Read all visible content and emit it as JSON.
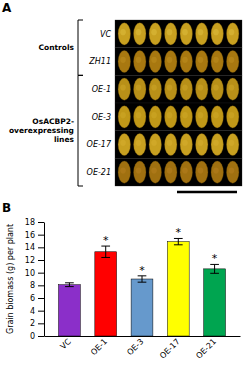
{
  "chart_data": [
    {
      "type": "image",
      "title": "A",
      "categories": [
        "VC",
        "ZH11",
        "OE-1",
        "OE-3",
        "OE-17",
        "OE-21"
      ],
      "colors": [
        "#C8A020",
        "#A87810",
        "#B89018",
        "#C09818",
        "#C8A020",
        "#A07010"
      ],
      "highlight_colors": [
        "#E0C040",
        "#C09020",
        "#D0A828",
        "#D0AA28",
        "#D8B030",
        "#B88020"
      ],
      "background_color": "#000000",
      "grains_per_row": 8,
      "groups": [
        {
          "label": "Controls",
          "members": [
            "VC",
            "ZH11"
          ]
        },
        {
          "label": "OsACBP2-\noverexpressing\nlines",
          "members": [
            "OE-1",
            "OE-3",
            "OE-17",
            "OE-21"
          ]
        }
      ]
    },
    {
      "type": "bar",
      "title": "B",
      "categories": [
        "VC",
        "OE-1",
        "OE-3",
        "OE-17",
        "OE-21"
      ],
      "values": [
        8.1,
        13.3,
        9.0,
        14.9,
        10.6
      ],
      "errors": [
        0.3,
        0.9,
        0.5,
        0.5,
        0.7
      ],
      "colors": [
        "#8B2FC9",
        "#FF0000",
        "#6699CC",
        "#FFFF00",
        "#00A550"
      ],
      "significance": [
        null,
        "*",
        "*",
        "*",
        "*"
      ],
      "ylabel": "Grain biomass (g) per plant",
      "ylim": [
        0,
        18
      ],
      "yticks": [
        0,
        2,
        4,
        6,
        8,
        10,
        12,
        14,
        16,
        18
      ]
    }
  ]
}
